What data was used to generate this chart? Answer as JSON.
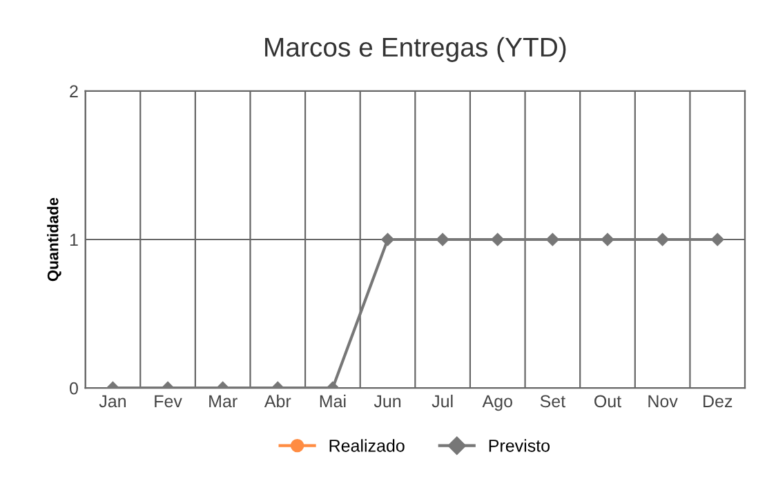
{
  "chart_data": {
    "type": "line",
    "title": "Marcos e Entregas (YTD)",
    "ylabel": "Quantidade",
    "categories": [
      "Jan",
      "Fev",
      "Mar",
      "Abr",
      "Mai",
      "Jun",
      "Jul",
      "Ago",
      "Set",
      "Out",
      "Nov",
      "Dez"
    ],
    "series": [
      {
        "name": "Realizado",
        "color": "#ff8c42",
        "marker": "circle",
        "values": [
          null,
          null,
          null,
          null,
          null,
          null,
          null,
          null,
          null,
          null,
          null,
          null
        ]
      },
      {
        "name": "Previsto",
        "color": "#777777",
        "marker": "diamond",
        "values": [
          0,
          0,
          0,
          0,
          0,
          1,
          1,
          1,
          1,
          1,
          1,
          1
        ]
      }
    ],
    "ylim": [
      0,
      2
    ],
    "yticks": [
      0,
      1,
      2
    ],
    "grid": true,
    "legend": "bottom",
    "line_style": "solid"
  }
}
